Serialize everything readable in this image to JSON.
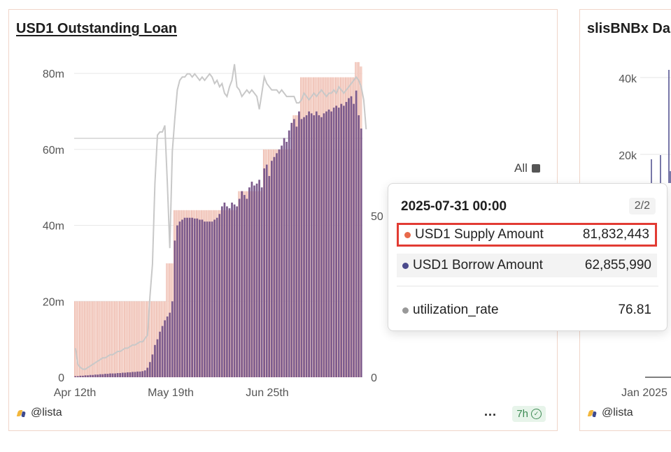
{
  "left_card": {
    "title": "USD1 Outstanding Loan",
    "brand": "@lista",
    "more": "...",
    "refresh": "7h",
    "all_label": "All"
  },
  "right_card": {
    "title": "slisBNBx Da",
    "brand": "@lista",
    "y_ticks": [
      "40k",
      "20k"
    ],
    "x_ticks": [
      "Jan 2025"
    ]
  },
  "tooltip": {
    "date": "2025-07-31 00:00",
    "page": "2/2",
    "rows": [
      {
        "label": "USD1 Supply Amount",
        "value": "81,832,443",
        "color": "#e8694a"
      },
      {
        "label": "USD1 Borrow Amount",
        "value": "62,855,990",
        "color": "#4b4a8c"
      },
      {
        "label": "utilization_rate",
        "value": "76.81",
        "color": "#999999"
      }
    ]
  },
  "colors": {
    "supply": "#f4d0c6",
    "borrow": "#7c5b8d",
    "utilization": "#c8c8c8",
    "highlight": "#e23b33",
    "card_border": "#f0d5c9"
  },
  "chart_data": {
    "type": "bar",
    "title": "USD1 Outstanding Loan",
    "x_ticks": [
      "Apr 12th",
      "May 19th",
      "Jun 25th"
    ],
    "y_ticks_left": [
      "0",
      "20m",
      "40m",
      "60m",
      "80m"
    ],
    "y_ticks_right": [
      "0",
      "50"
    ],
    "ylim_left": [
      0,
      85000000
    ],
    "ylim_right": [
      0,
      100
    ],
    "grid": true,
    "series": [
      {
        "name": "USD1 Supply Amount",
        "kind": "bar",
        "axis": "left",
        "values": [
          20000000,
          20000000,
          20000000,
          20000000,
          20000000,
          20000000,
          20000000,
          20000000,
          20000000,
          20000000,
          20000000,
          20000000,
          20000000,
          20000000,
          20000000,
          20000000,
          20000000,
          20000000,
          20000000,
          20000000,
          20000000,
          20000000,
          20000000,
          20000000,
          20000000,
          20000000,
          20000000,
          20000000,
          20000000,
          20000000,
          20000000,
          20000000,
          20000000,
          20000000,
          20000000,
          20000000,
          20000000,
          30000000,
          30000000,
          30000000,
          44000000,
          44000000,
          44000000,
          44000000,
          44000000,
          44000000,
          44000000,
          44000000,
          44000000,
          44000000,
          44000000,
          44000000,
          44000000,
          44000000,
          44000000,
          44000000,
          44000000,
          44000000,
          44000000,
          44000000,
          44000000,
          44000000,
          44000000,
          44000000,
          44000000,
          44000000,
          49000000,
          49000000,
          49000000,
          49000000,
          49000000,
          49000000,
          49000000,
          49000000,
          49000000,
          49000000,
          60000000,
          60000000,
          60000000,
          60000000,
          60000000,
          60000000,
          60000000,
          60000000,
          60000000,
          60000000,
          60000000,
          60000000,
          69000000,
          69000000,
          69000000,
          79000000,
          79000000,
          79000000,
          79000000,
          79000000,
          79000000,
          79000000,
          79000000,
          79000000,
          79000000,
          79000000,
          79000000,
          79000000,
          79000000,
          79000000,
          79000000,
          79000000,
          79000000,
          79000000,
          79000000,
          79000000,
          79000000,
          83000000,
          83000000,
          81832443
        ]
      },
      {
        "name": "USD1 Borrow Amount",
        "kind": "bar",
        "axis": "left",
        "values": [
          300000,
          300000,
          400000,
          400000,
          500000,
          500000,
          600000,
          600000,
          700000,
          700000,
          800000,
          800000,
          900000,
          900000,
          1000000,
          1000000,
          1000000,
          1100000,
          1100000,
          1200000,
          1200000,
          1300000,
          1300000,
          1400000,
          1400000,
          1500000,
          1500000,
          1600000,
          1800000,
          2500000,
          4000000,
          6000000,
          8500000,
          10000000,
          12000000,
          13500000,
          15000000,
          16000000,
          17000000,
          20000000,
          36000000,
          40000000,
          41000000,
          41500000,
          42000000,
          42000000,
          42000000,
          42000000,
          41800000,
          41800000,
          41500000,
          41500000,
          41000000,
          41000000,
          41000000,
          41000000,
          41500000,
          42000000,
          43000000,
          45000000,
          46000000,
          45000000,
          44500000,
          46000000,
          45500000,
          45000000,
          47000000,
          49000000,
          48000000,
          47000000,
          50000000,
          51500000,
          50500000,
          51000000,
          52000000,
          50000000,
          55000000,
          56000000,
          53000000,
          57000000,
          58000000,
          59000000,
          60000000,
          61000000,
          63000000,
          62000000,
          65000000,
          67000000,
          68000000,
          66000000,
          70000000,
          68000000,
          68500000,
          69000000,
          70000000,
          69500000,
          69000000,
          70000000,
          69000000,
          68500000,
          69500000,
          70000000,
          70500000,
          70000000,
          71000000,
          71500000,
          71000000,
          72000000,
          71500000,
          72500000,
          73500000,
          74000000,
          72000000,
          75500000,
          69000000,
          65500000,
          58000000,
          62855990
        ]
      },
      {
        "name": "utilization_rate",
        "kind": "line",
        "axis": "right",
        "values": [
          9,
          4,
          3,
          2.5,
          2.5,
          3,
          3.5,
          4,
          4.5,
          5,
          5.5,
          6,
          6,
          6.5,
          7,
          7,
          7.5,
          8,
          8,
          8.5,
          9,
          9,
          9.5,
          10,
          10,
          10.5,
          11,
          11,
          12,
          13,
          25,
          35,
          60,
          75,
          76,
          76,
          78,
          60,
          40,
          70,
          80,
          89,
          92,
          93,
          93,
          94,
          94,
          93,
          94,
          93,
          92,
          93,
          92,
          93,
          94,
          93,
          91,
          92,
          90,
          91,
          88,
          87,
          90,
          92,
          97,
          90,
          89,
          87,
          88,
          89,
          88,
          89,
          88,
          87,
          83,
          88,
          93,
          91,
          90,
          89,
          89,
          89,
          88,
          89,
          88,
          87,
          87,
          87,
          87,
          85,
          85,
          86,
          88,
          87,
          86,
          87,
          88,
          87,
          88,
          89,
          88,
          87,
          88,
          88,
          89,
          88,
          90,
          89,
          88,
          89,
          90,
          91,
          92,
          93,
          92,
          90,
          86,
          76.81
        ]
      }
    ]
  }
}
